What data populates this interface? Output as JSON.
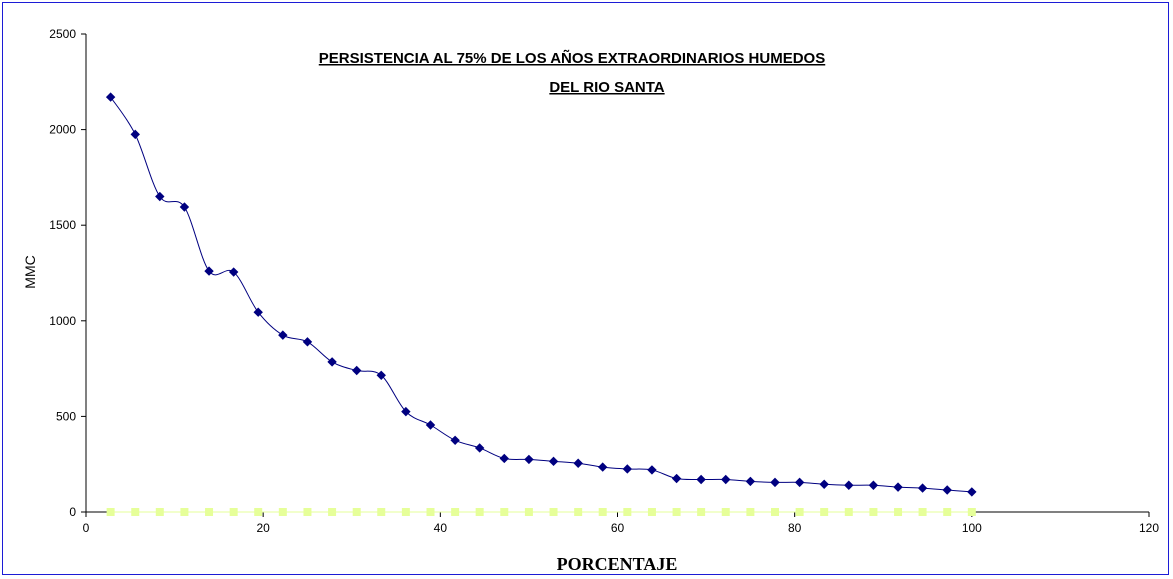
{
  "chart_data": {
    "type": "line",
    "title_lines": [
      "PERSISTENCIA AL 75% DE LOS AÑOS EXTRAORDINARIOS HUMEDOS",
      "DEL RIO SANTA"
    ],
    "xlabel": "PORCENTAJE",
    "ylabel": "MMC",
    "xlim": [
      0,
      120
    ],
    "ylim": [
      0,
      2500
    ],
    "x_ticks": [
      0,
      20,
      40,
      60,
      80,
      100,
      120
    ],
    "y_ticks": [
      0,
      500,
      1000,
      1500,
      2000,
      2500
    ],
    "grid": false,
    "legend": "none",
    "series": [
      {
        "marker": "diamond",
        "color": "#000080",
        "smooth": true,
        "x": [
          2.78,
          5.56,
          8.33,
          11.11,
          13.89,
          16.67,
          19.44,
          22.22,
          25.0,
          27.78,
          30.56,
          33.33,
          36.11,
          38.89,
          41.67,
          44.44,
          47.22,
          50.0,
          52.78,
          55.56,
          58.33,
          61.11,
          63.89,
          66.67,
          69.44,
          72.22,
          75.0,
          77.78,
          80.56,
          83.33,
          86.11,
          88.89,
          91.67,
          94.44,
          97.22,
          100.0
        ],
        "values": [
          2170,
          1975,
          1650,
          1595,
          1260,
          1255,
          1045,
          925,
          890,
          785,
          740,
          715,
          525,
          455,
          375,
          335,
          280,
          275,
          265,
          255,
          235,
          225,
          220,
          175,
          170,
          170,
          160,
          155,
          155,
          145,
          140,
          140,
          130,
          125,
          115,
          105
        ]
      },
      {
        "marker": "square",
        "color": "#e6ff99",
        "smooth": false,
        "x": [
          2.78,
          5.56,
          8.33,
          11.11,
          13.89,
          16.67,
          19.44,
          22.22,
          25.0,
          27.78,
          30.56,
          33.33,
          36.11,
          38.89,
          41.67,
          44.44,
          47.22,
          50.0,
          52.78,
          55.56,
          58.33,
          61.11,
          63.89,
          66.67,
          69.44,
          72.22,
          75.0,
          77.78,
          80.56,
          83.33,
          86.11,
          88.89,
          91.67,
          94.44,
          97.22,
          100.0
        ],
        "values": [
          0,
          0,
          0,
          0,
          0,
          0,
          0,
          0,
          0,
          0,
          0,
          0,
          0,
          0,
          0,
          0,
          0,
          0,
          0,
          0,
          0,
          0,
          0,
          0,
          0,
          0,
          0,
          0,
          0,
          0,
          0,
          0,
          0,
          0,
          0,
          0
        ]
      }
    ]
  }
}
